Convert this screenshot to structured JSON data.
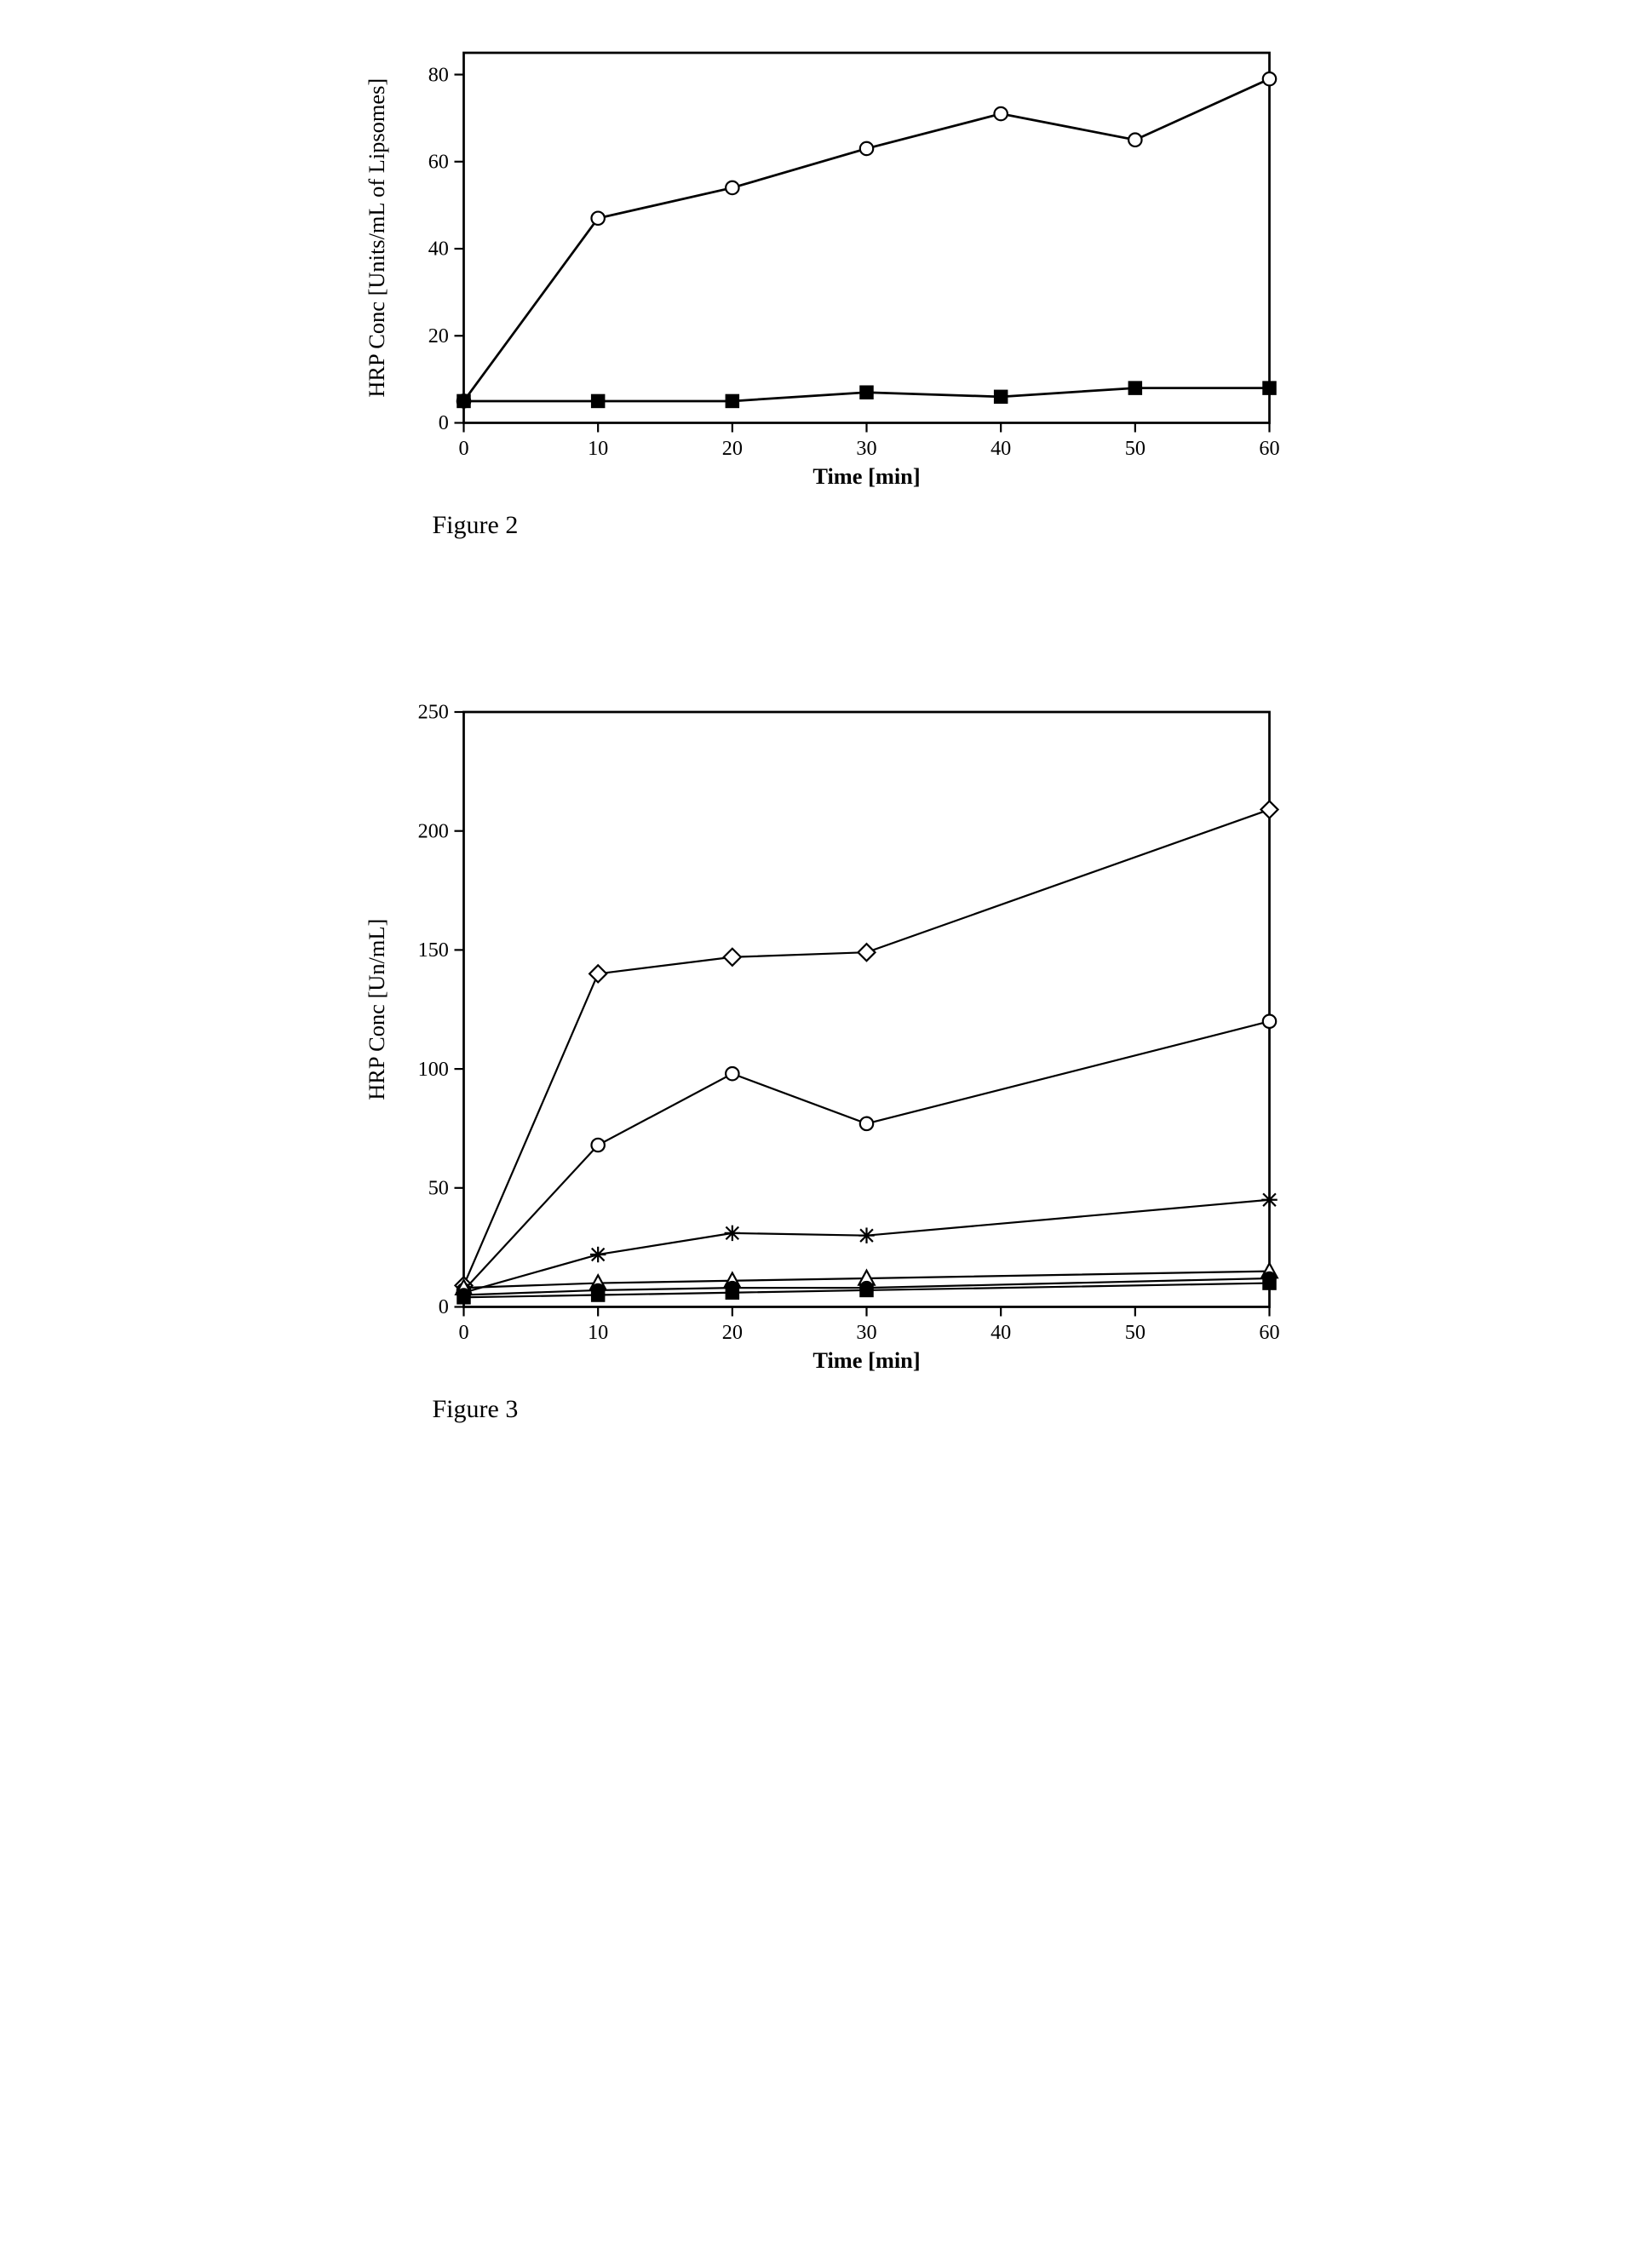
{
  "figure2": {
    "caption": "Figure 2",
    "type": "line",
    "xlabel": "Time [min]",
    "ylabel": "HRP Conc [Units/mL of Lipsomes]",
    "xlim": [
      0,
      60
    ],
    "ylim": [
      0,
      85
    ],
    "xtick_step": 10,
    "yticks": [
      0,
      20,
      40,
      60,
      80
    ],
    "label_fontsize": 24,
    "tick_fontsize": 22,
    "line_color": "#000000",
    "line_width": 2.5,
    "marker_size": 7,
    "background_color": "#ffffff",
    "grid_on": false,
    "series": [
      {
        "marker": "circle-open",
        "xs": [
          0,
          10,
          20,
          30,
          40,
          50,
          60
        ],
        "ys": [
          5,
          47,
          54,
          63,
          71,
          65,
          79
        ]
      },
      {
        "marker": "square-filled",
        "xs": [
          0,
          10,
          20,
          30,
          40,
          50,
          60
        ],
        "ys": [
          5,
          5,
          5,
          7,
          6,
          8,
          8
        ]
      }
    ]
  },
  "figure3": {
    "caption": "Figure 3",
    "type": "line",
    "xlabel": "Time [min]",
    "ylabel": "HRP Conc [Un/mL]",
    "xlim": [
      0,
      60
    ],
    "ylim": [
      0,
      250
    ],
    "xtick_step": 10,
    "ytick_step": 50,
    "label_fontsize": 24,
    "tick_fontsize": 22,
    "line_color": "#000000",
    "line_width": 2.0,
    "marker_size": 7,
    "background_color": "#ffffff",
    "grid_on": false,
    "series": [
      {
        "marker": "diamond-open",
        "xs": [
          0,
          10,
          20,
          30,
          60
        ],
        "ys": [
          9,
          140,
          147,
          149,
          209
        ]
      },
      {
        "marker": "circle-open",
        "xs": [
          0,
          10,
          20,
          30,
          60
        ],
        "ys": [
          7,
          68,
          98,
          77,
          120
        ]
      },
      {
        "marker": "asterisk",
        "xs": [
          0,
          10,
          20,
          30,
          60
        ],
        "ys": [
          6,
          22,
          31,
          30,
          45
        ]
      },
      {
        "marker": "triangle-open",
        "xs": [
          0,
          10,
          20,
          30,
          60
        ],
        "ys": [
          8,
          10,
          11,
          12,
          15
        ]
      },
      {
        "marker": "circle-filled",
        "xs": [
          0,
          10,
          20,
          30,
          60
        ],
        "ys": [
          5,
          7,
          8,
          8,
          12
        ]
      },
      {
        "marker": "square-filled",
        "xs": [
          0,
          10,
          20,
          30,
          60
        ],
        "ys": [
          4,
          5,
          6,
          7,
          10
        ]
      }
    ]
  }
}
